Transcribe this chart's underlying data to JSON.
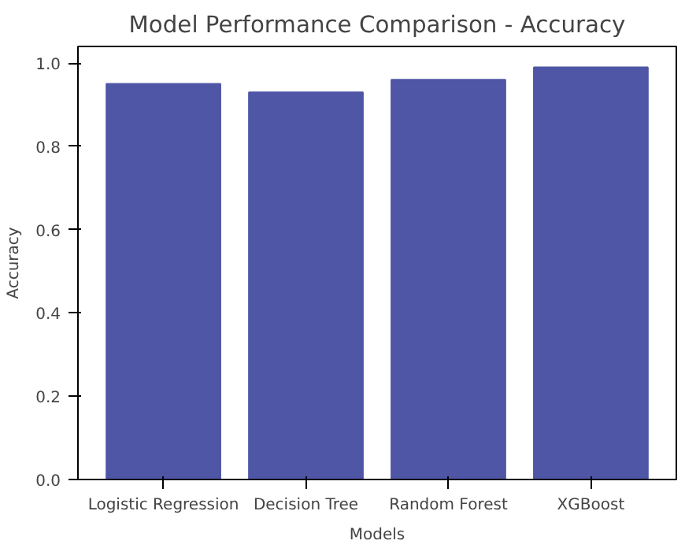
{
  "chart_data": {
    "type": "bar",
    "title": "Model Performance Comparison - Accuracy",
    "xlabel": "Models",
    "ylabel": "Accuracy",
    "categories": [
      "Logistic Regression",
      "Decision Tree",
      "Random Forest",
      "XGBoost"
    ],
    "values": [
      0.95,
      0.93,
      0.96,
      0.99
    ],
    "color": "#4f56a6",
    "ylim": [
      0,
      1.04
    ],
    "yticks": [
      {
        "value": 0,
        "label": "0.0"
      },
      {
        "value": 0.2,
        "label": "0.2"
      },
      {
        "value": 0.4,
        "label": "0.4"
      },
      {
        "value": 0.6,
        "label": "0.6"
      },
      {
        "value": 0.8,
        "label": "0.8"
      },
      {
        "value": 1.0,
        "label": "1.0"
      }
    ],
    "grid": false
  }
}
